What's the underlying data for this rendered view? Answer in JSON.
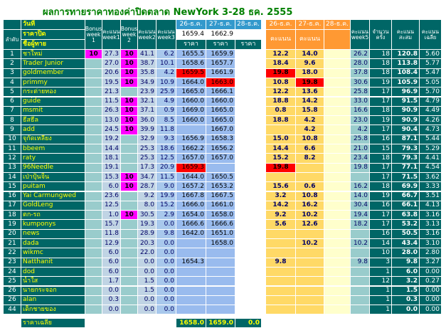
{
  "title": "ผลการทายราคาทองค่าปิดตลาด NewYork 3-28 ธค. 2555",
  "header": {
    "date_label": "วันที่",
    "close_label": "ราคาปิด",
    "columns": [
      "ลำดับ",
      "ชื่อผู้ทาย",
      "Bonus week 1",
      "คะแนน week1",
      "Bonus week 2",
      "คะแนน week2",
      "คะแนน week3",
      "26-ธ.ค.",
      "27-ธ.ค.",
      "28-ธ.ค.",
      "26-ธ.ค.",
      "27-ธ.ค.",
      "28-ธ.ค.",
      "คะแนน week5",
      "จำนวนครั้ง",
      "คะแนนสะสม",
      "คะแนนเฉลี่ย"
    ],
    "closing": [
      "1659.4",
      "1662.9"
    ],
    "sub": [
      "ราคา",
      "ราคา",
      "ราคา",
      "คะแนน",
      "คะแนน"
    ]
  },
  "rows": [
    [
      "1",
      "ชาใหม่",
      "10",
      "27.3",
      "10",
      "41.1",
      "6.2",
      "1655.5",
      "1659.9",
      null,
      "12.2",
      "14.0",
      null,
      "26.2",
      "18",
      "120.8",
      "5.60"
    ],
    [
      "2",
      "Trader Junior",
      null,
      "27.0",
      "10",
      "38.7",
      "10.1",
      "1658.6",
      "1657.7",
      null,
      "18.4",
      "9.6",
      null,
      "28.0",
      "18",
      "113.8",
      "5.77"
    ],
    [
      "3",
      "goldmember",
      null,
      "20.6",
      "10",
      "35.8",
      "4.2",
      "1659.5",
      "1661.9",
      null,
      "19.8",
      "18.0",
      null,
      "37.8",
      "18",
      "108.4",
      "5.47"
    ],
    [
      "4",
      "primmy",
      null,
      "19.5",
      "10",
      "34.9",
      "10.9",
      "1664.0",
      "1663.0",
      null,
      "10.8",
      "19.8",
      null,
      "30.6",
      "19",
      "105.9",
      "5.05"
    ],
    [
      "5",
      "กระต่ายทอง",
      null,
      "21.3",
      null,
      "23.9",
      "25.9",
      "1665.0",
      "1666.1",
      null,
      "12.2",
      "13.6",
      null,
      "25.8",
      "17",
      "96.9",
      "5.70"
    ],
    [
      "6",
      "guide",
      null,
      "11.5",
      "10",
      "32.1",
      "4.9",
      "1660.0",
      "1660.0",
      null,
      "18.8",
      "14.2",
      null,
      "33.0",
      "17",
      "91.5",
      "4.79"
    ],
    [
      "7",
      "msmit",
      null,
      "26.3",
      "10",
      "37.1",
      "0.9",
      "1669.0",
      "1665.0",
      null,
      "0.8",
      "15.8",
      null,
      "16.6",
      "18",
      "90.9",
      "4.49"
    ],
    [
      "8",
      "ธีสธีล",
      null,
      "13.0",
      "10",
      "36.0",
      "8.5",
      "1660.0",
      "1665.0",
      null,
      "18.8",
      "4.2",
      null,
      "23.0",
      "19",
      "90.9",
      "4.26"
    ],
    [
      "9",
      "add",
      null,
      "24.5",
      "10",
      "39.9",
      "11.8",
      null,
      "1667.0",
      null,
      null,
      "4.2",
      null,
      "4.2",
      "17",
      "90.4",
      "4.73"
    ],
    [
      "10",
      "จุกัดเหลียง",
      null,
      "19.2",
      null,
      "32.9",
      "9.3",
      "1656.9",
      "1658.3",
      null,
      "15.0",
      "10.8",
      null,
      "25.8",
      "16",
      "87.1",
      "5.44"
    ],
    [
      "11",
      "bbeem",
      null,
      "14.4",
      null,
      "25.3",
      "18.6",
      "1662.2",
      "1656.2",
      null,
      "14.4",
      "6.6",
      null,
      "21.0",
      "15",
      "79.3",
      "5.29"
    ],
    [
      "12",
      "raty",
      null,
      "18.1",
      null,
      "25.3",
      "12.5",
      "1657.0",
      "1657.0",
      null,
      "15.2",
      "8.2",
      null,
      "23.4",
      "18",
      "79.3",
      "4.41"
    ],
    [
      "13",
      "96Needle",
      null,
      "19.1",
      null,
      "17.3",
      "20.9",
      "1659.3",
      null,
      null,
      "19.8",
      null,
      null,
      "19.8",
      "17",
      "77.1",
      "4.54"
    ],
    [
      "14",
      "เป่าปุ้นจิ้น",
      null,
      "15.3",
      "10",
      "34.7",
      "11.5",
      "1644.0",
      "1650.5",
      null,
      null,
      null,
      null,
      null,
      "17",
      "71.5",
      "3.62"
    ],
    [
      "15",
      "puitam",
      null,
      "6.0",
      "10",
      "28.7",
      "9.0",
      "1657.2",
      "1653.2",
      null,
      "15.6",
      "0.6",
      null,
      "16.2",
      "18",
      "69.9",
      "3.33"
    ],
    [
      "16",
      "Yai Carmungwed",
      null,
      "23.6",
      null,
      "9.2",
      "19.9",
      "1667.8",
      "1667.5",
      null,
      "3.2",
      "10.8",
      null,
      "14.0",
      "19",
      "66.7",
      "3.51"
    ],
    [
      "17",
      "GoldLeng",
      null,
      "12.5",
      null,
      "8.0",
      "15.2",
      "1666.0",
      "1661.0",
      null,
      "14.2",
      "16.2",
      null,
      "30.4",
      "16",
      "66.1",
      "4.13"
    ],
    [
      "18",
      "ตก-รถ",
      null,
      "1.0",
      "10",
      "30.5",
      "2.9",
      "1654.0",
      "1658.0",
      null,
      "9.2",
      "10.2",
      null,
      "19.4",
      "17",
      "63.8",
      "3.16"
    ],
    [
      "19",
      "kumponys",
      null,
      "15.7",
      null,
      "19.3",
      "0.0",
      "1666.6",
      "1666.6",
      null,
      "5.6",
      "12.6",
      null,
      "18.2",
      "17",
      "53.2",
      "3.13"
    ],
    [
      "20",
      "news",
      null,
      "11.8",
      null,
      "28.9",
      "9.8",
      "1642.0",
      "1651.0",
      null,
      null,
      null,
      null,
      null,
      "16",
      "50.5",
      "3.16"
    ],
    [
      "21",
      "dada",
      null,
      "12.9",
      null,
      "20.3",
      "0.0",
      null,
      "1658.0",
      null,
      null,
      "10.2",
      null,
      "10.2",
      "14",
      "43.4",
      "3.10"
    ],
    [
      "22",
      "wikmc",
      null,
      "6.0",
      null,
      "22.0",
      "0.0",
      null,
      null,
      null,
      null,
      null,
      null,
      null,
      "10",
      "28.0",
      "2.80"
    ],
    [
      "23",
      "Natthanit",
      null,
      "6.0",
      null,
      "0.0",
      "0.0",
      "1654.3",
      null,
      null,
      "9.8",
      null,
      null,
      "9.8",
      "3",
      "9.8",
      "3.27"
    ],
    [
      "24",
      "dod",
      null,
      "6.0",
      null,
      "0.0",
      "0.0",
      null,
      null,
      null,
      null,
      null,
      null,
      null,
      "1",
      "6.0",
      "0.00"
    ],
    [
      "25",
      "น้ำใส",
      null,
      "1.7",
      null,
      "1.5",
      "0.0",
      null,
      null,
      null,
      null,
      null,
      null,
      null,
      "12",
      "3.2",
      "0.27"
    ],
    [
      "26",
      "นายกระจอก",
      null,
      "0.0",
      null,
      "1.5",
      "0.0",
      null,
      null,
      null,
      null,
      null,
      null,
      null,
      "1",
      "1.5",
      "0.00"
    ],
    [
      "26",
      "alan",
      null,
      "0.3",
      null,
      "0.0",
      "0.0",
      null,
      null,
      null,
      null,
      null,
      null,
      null,
      "1",
      "0.3",
      "0.00"
    ],
    [
      "44",
      "เด็กชายของ",
      null,
      "0.0",
      null,
      "0.0",
      "0.0",
      null,
      null,
      null,
      null,
      null,
      null,
      null,
      "1",
      "0.0",
      "0.00"
    ]
  ],
  "footer": {
    "label": "ราคาเฉลี่ย",
    "values": [
      "1658.0",
      "1659.0",
      "0.0"
    ]
  }
}
